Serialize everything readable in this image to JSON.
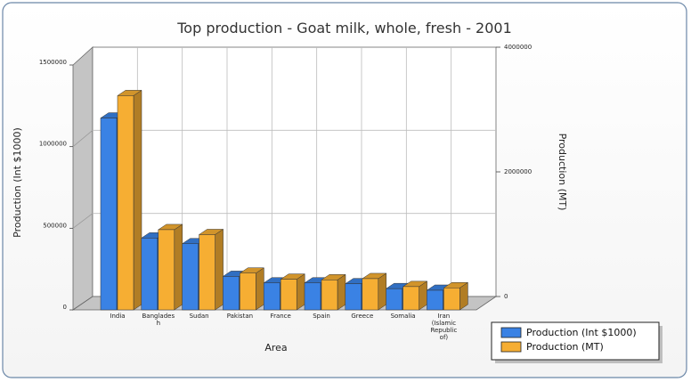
{
  "chart_data": {
    "type": "bar",
    "title": "Top production - Goat milk, whole, fresh - 2001",
    "xlabel": "Area",
    "ylabel_left": "Production (Int $1000)",
    "ylabel_right": "Production (MT)",
    "categories": [
      [
        "India"
      ],
      [
        "Banglades",
        "h"
      ],
      [
        "Sudan"
      ],
      [
        "Pakistan"
      ],
      [
        "France"
      ],
      [
        "Spain"
      ],
      [
        "Greece"
      ],
      [
        "Somalia"
      ],
      [
        "Iran",
        "(Islamic",
        "Republic",
        "of)"
      ]
    ],
    "y_left": {
      "min": 0,
      "max": 1500000,
      "ticks": [
        "0",
        "500000",
        "1000000",
        "1500000"
      ],
      "tick_values": [
        0,
        500000,
        1000000,
        1500000
      ]
    },
    "y_right": {
      "min": 0,
      "max": 4000000,
      "ticks": [
        "0",
        "2000000",
        "4000000"
      ],
      "tick_values": [
        0,
        2000000,
        4000000
      ]
    },
    "grid": true,
    "legend_position": "bottom-right",
    "series": [
      {
        "name": "Production (Int $1000)",
        "axis": "left",
        "color": "#3a82e4",
        "values": [
          1175000,
          440000,
          405000,
          205000,
          165000,
          165000,
          160000,
          130000,
          120000
        ]
      },
      {
        "name": "Production (MT)",
        "axis": "right",
        "color": "#f6ae33",
        "values": [
          3500000,
          1310000,
          1230000,
          600000,
          500000,
          490000,
          510000,
          380000,
          360000
        ]
      }
    ]
  }
}
